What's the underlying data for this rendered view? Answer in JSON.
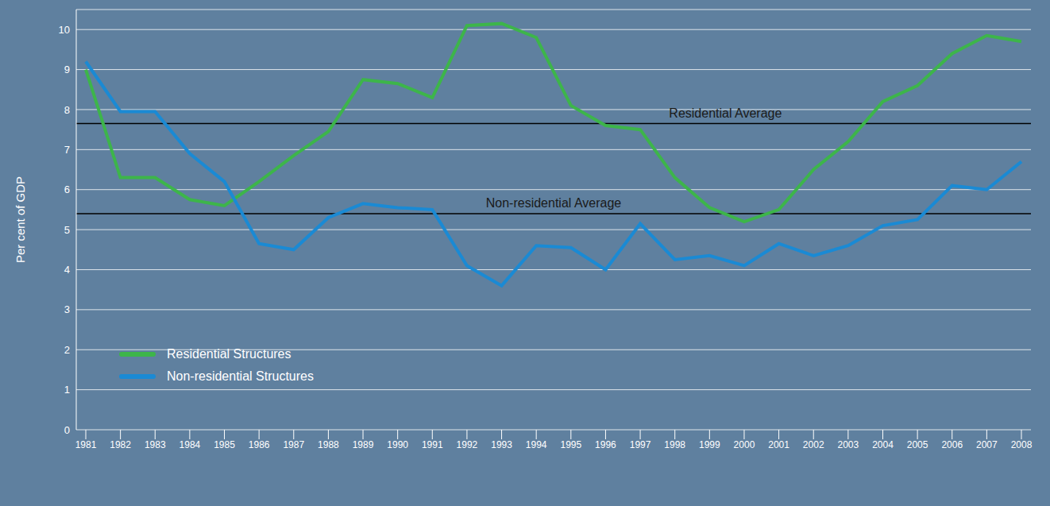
{
  "chart_data": {
    "type": "line",
    "y_label": "Per cent of GDP",
    "categories": [
      "1981",
      "1982",
      "1983",
      "1984",
      "1985",
      "1986",
      "1987",
      "1988",
      "1989",
      "1990",
      "1991",
      "1992",
      "1993",
      "1994",
      "1995",
      "1996",
      "1997",
      "1998",
      "1999",
      "2000",
      "2001",
      "2002",
      "2003",
      "2004",
      "2005",
      "2006",
      "2007",
      "2008"
    ],
    "series": [
      {
        "name": "Residential Structures",
        "color": "#3db54a",
        "values": [
          9.0,
          6.3,
          6.3,
          5.75,
          5.6,
          6.2,
          6.85,
          7.45,
          8.75,
          8.65,
          8.3,
          10.1,
          10.15,
          9.8,
          8.1,
          7.6,
          7.5,
          6.3,
          5.55,
          5.2,
          5.5,
          6.5,
          7.2,
          8.2,
          8.6,
          9.4,
          9.85,
          9.7
        ]
      },
      {
        "name": "Non-residential Structures",
        "color": "#1a8ad4",
        "values": [
          9.2,
          7.95,
          7.95,
          6.9,
          6.2,
          4.65,
          4.5,
          5.3,
          5.65,
          5.55,
          5.5,
          4.1,
          3.6,
          4.6,
          4.55,
          4.0,
          5.15,
          4.25,
          4.35,
          4.1,
          4.65,
          4.35,
          4.6,
          5.1,
          5.25,
          6.1,
          6.0,
          6.7
        ]
      }
    ],
    "reference_lines": [
      {
        "label": "Residential Average",
        "value": 7.65,
        "color": "#000000"
      },
      {
        "label": "Non-residential Average",
        "value": 5.4,
        "color": "#000000"
      }
    ],
    "ylim": [
      0,
      10.5
    ],
    "yticks": [
      0,
      1,
      2,
      3,
      4,
      5,
      6,
      7,
      8,
      9,
      10
    ],
    "grid": true,
    "legend": "lower left"
  }
}
